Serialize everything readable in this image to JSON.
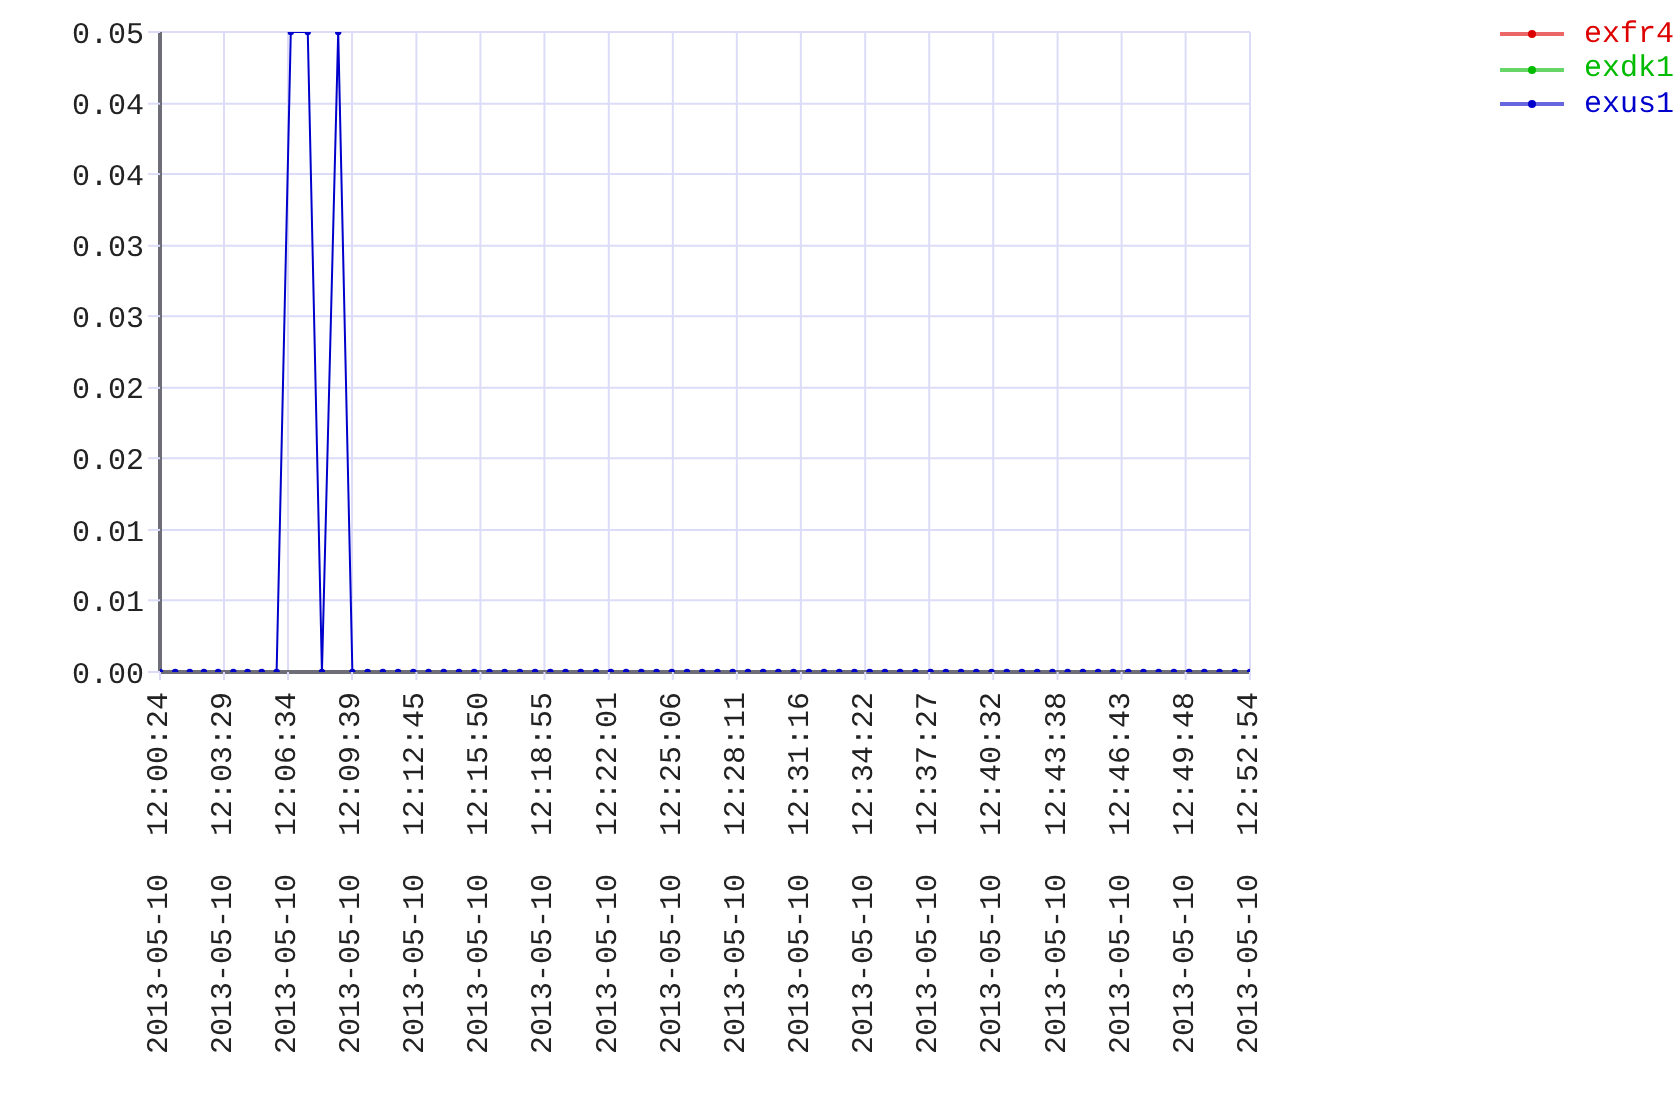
{
  "chart_data": {
    "type": "line",
    "x": [
      "2013-05-10T12:00:24",
      "2013-05-10T12:01:08",
      "2013-05-10T12:01:50",
      "2013-05-10T12:02:31",
      "2013-05-10T12:03:12",
      "2013-05-10T12:03:56",
      "2013-05-10T12:04:37",
      "2013-05-10T12:05:18",
      "2013-05-10T12:06:01",
      "2013-05-10T12:06:42",
      "2013-05-10T12:07:31",
      "2013-05-10T12:08:12",
      "2013-05-10T12:08:59",
      "2013-05-10T12:09:40",
      "2013-05-10T12:10:24",
      "2013-05-10T12:11:08",
      "2013-05-10T12:11:52",
      "2013-05-10T12:12:36",
      "2013-05-10T12:13:20",
      "2013-05-10T12:14:04",
      "2013-05-10T12:14:48",
      "2013-05-10T12:15:32",
      "2013-05-10T12:16:16",
      "2013-05-10T12:17:00",
      "2013-05-10T12:17:44",
      "2013-05-10T12:18:28",
      "2013-05-10T12:19:12",
      "2013-05-10T12:19:56",
      "2013-05-10T12:20:40",
      "2013-05-10T12:21:24",
      "2013-05-10T12:22:07",
      "2013-05-10T12:22:51",
      "2013-05-10T12:23:35",
      "2013-05-10T12:24:19",
      "2013-05-10T12:25:03",
      "2013-05-10T12:25:47",
      "2013-05-10T12:26:31",
      "2013-05-10T12:27:15",
      "2013-05-10T12:27:59",
      "2013-05-10T12:28:43",
      "2013-05-10T12:29:27",
      "2013-05-10T12:30:11",
      "2013-05-10T12:30:55",
      "2013-05-10T12:31:39",
      "2013-05-10T12:32:23",
      "2013-05-10T12:33:07",
      "2013-05-10T12:33:51",
      "2013-05-10T12:34:35",
      "2013-05-10T12:35:19",
      "2013-05-10T12:36:03",
      "2013-05-10T12:36:47",
      "2013-05-10T12:37:31",
      "2013-05-10T12:38:15",
      "2013-05-10T12:38:59",
      "2013-05-10T12:39:43",
      "2013-05-10T12:40:27",
      "2013-05-10T12:41:11",
      "2013-05-10T12:41:55",
      "2013-05-10T12:42:39",
      "2013-05-10T12:43:23",
      "2013-05-10T12:44:07",
      "2013-05-10T12:44:51",
      "2013-05-10T12:45:35",
      "2013-05-10T12:46:18",
      "2013-05-10T12:47:02",
      "2013-05-10T12:47:46",
      "2013-05-10T12:48:30",
      "2013-05-10T12:49:14",
      "2013-05-10T12:49:58",
      "2013-05-10T12:50:42",
      "2013-05-10T12:51:26",
      "2013-05-10T12:52:10",
      "2013-05-10T12:52:54"
    ],
    "series": [
      {
        "name": "exfr4",
        "color": "#dd0000",
        "values": [
          null,
          null,
          null,
          null,
          null,
          null,
          null,
          null,
          null,
          null,
          null,
          null,
          null,
          null,
          null,
          null,
          null,
          null,
          null,
          null,
          null,
          null,
          null,
          null,
          null,
          null,
          null,
          null,
          null,
          null,
          null,
          null,
          null,
          null,
          null,
          null,
          null,
          null,
          null,
          null,
          null,
          null,
          null,
          null,
          null,
          null,
          null,
          null,
          null,
          null,
          null,
          null,
          null,
          null,
          null,
          null,
          null,
          null,
          null,
          null,
          null,
          null,
          null,
          null,
          null,
          null,
          null,
          null,
          null,
          null,
          null,
          null,
          null
        ]
      },
      {
        "name": "exdk1",
        "color": "#00bb00",
        "values": [
          null,
          null,
          null,
          null,
          null,
          null,
          null,
          null,
          null,
          null,
          null,
          null,
          null,
          null,
          null,
          null,
          null,
          null,
          null,
          null,
          null,
          null,
          null,
          null,
          null,
          null,
          null,
          null,
          null,
          null,
          null,
          null,
          null,
          null,
          null,
          null,
          null,
          null,
          null,
          null,
          null,
          null,
          null,
          null,
          null,
          null,
          null,
          null,
          null,
          null,
          null,
          null,
          null,
          null,
          null,
          null,
          null,
          null,
          null,
          null,
          null,
          null,
          null,
          null,
          null,
          null,
          null,
          null,
          null,
          null,
          null,
          null,
          null
        ]
      },
      {
        "name": "exus1",
        "color": "#0000cc",
        "values": [
          0,
          0,
          0,
          0,
          0,
          0,
          0,
          0,
          0,
          0.05,
          0.05,
          0,
          0.05,
          0,
          0,
          0,
          0,
          0,
          0,
          0,
          0,
          0,
          0,
          0,
          0,
          0,
          0,
          0,
          0,
          0,
          0,
          0,
          0,
          0,
          0,
          0,
          0,
          0,
          0,
          0,
          0,
          0,
          0,
          0,
          0,
          0,
          0,
          0,
          0,
          0,
          0,
          0,
          0,
          0,
          0,
          0,
          0,
          0,
          0,
          0,
          0,
          0,
          0,
          0,
          0,
          0,
          0,
          0,
          0,
          0,
          0,
          0,
          0
        ]
      }
    ],
    "xlim": [
      "2013-05-10T12:00:24",
      "2013-05-10T12:52:54"
    ],
    "xticks": [
      {
        "value": "2013-05-10T12:00:24",
        "label": "2013-05-10 12:00:24"
      },
      {
        "value": "2013-05-10T12:03:29",
        "label": "2013-05-10 12:03:29"
      },
      {
        "value": "2013-05-10T12:06:34",
        "label": "2013-05-10 12:06:34"
      },
      {
        "value": "2013-05-10T12:09:39",
        "label": "2013-05-10 12:09:39"
      },
      {
        "value": "2013-05-10T12:12:45",
        "label": "2013-05-10 12:12:45"
      },
      {
        "value": "2013-05-10T12:15:50",
        "label": "2013-05-10 12:15:50"
      },
      {
        "value": "2013-05-10T12:18:55",
        "label": "2013-05-10 12:18:55"
      },
      {
        "value": "2013-05-10T12:22:01",
        "label": "2013-05-10 12:22:01"
      },
      {
        "value": "2013-05-10T12:25:06",
        "label": "2013-05-10 12:25:06"
      },
      {
        "value": "2013-05-10T12:28:11",
        "label": "2013-05-10 12:28:11"
      },
      {
        "value": "2013-05-10T12:31:16",
        "label": "2013-05-10 12:31:16"
      },
      {
        "value": "2013-05-10T12:34:22",
        "label": "2013-05-10 12:34:22"
      },
      {
        "value": "2013-05-10T12:37:27",
        "label": "2013-05-10 12:37:27"
      },
      {
        "value": "2013-05-10T12:40:32",
        "label": "2013-05-10 12:40:32"
      },
      {
        "value": "2013-05-10T12:43:38",
        "label": "2013-05-10 12:43:38"
      },
      {
        "value": "2013-05-10T12:46:43",
        "label": "2013-05-10 12:46:43"
      },
      {
        "value": "2013-05-10T12:49:48",
        "label": "2013-05-10 12:49:48"
      },
      {
        "value": "2013-05-10T12:52:54",
        "label": "2013-05-10 12:52:54"
      }
    ],
    "ylim": [
      0,
      0.05
    ],
    "yticks": [
      {
        "value": 0,
        "label": "0.00"
      },
      {
        "value": 0.0056,
        "label": "0.01"
      },
      {
        "value": 0.0111,
        "label": "0.01"
      },
      {
        "value": 0.0167,
        "label": "0.02"
      },
      {
        "value": 0.0222,
        "label": "0.02"
      },
      {
        "value": 0.0278,
        "label": "0.03"
      },
      {
        "value": 0.0333,
        "label": "0.03"
      },
      {
        "value": 0.0389,
        "label": "0.04"
      },
      {
        "value": 0.0444,
        "label": "0.04"
      },
      {
        "value": 0.05,
        "label": "0.05"
      }
    ],
    "grid": true,
    "legend": "top right",
    "marker": "circle",
    "line_style": "solid"
  }
}
